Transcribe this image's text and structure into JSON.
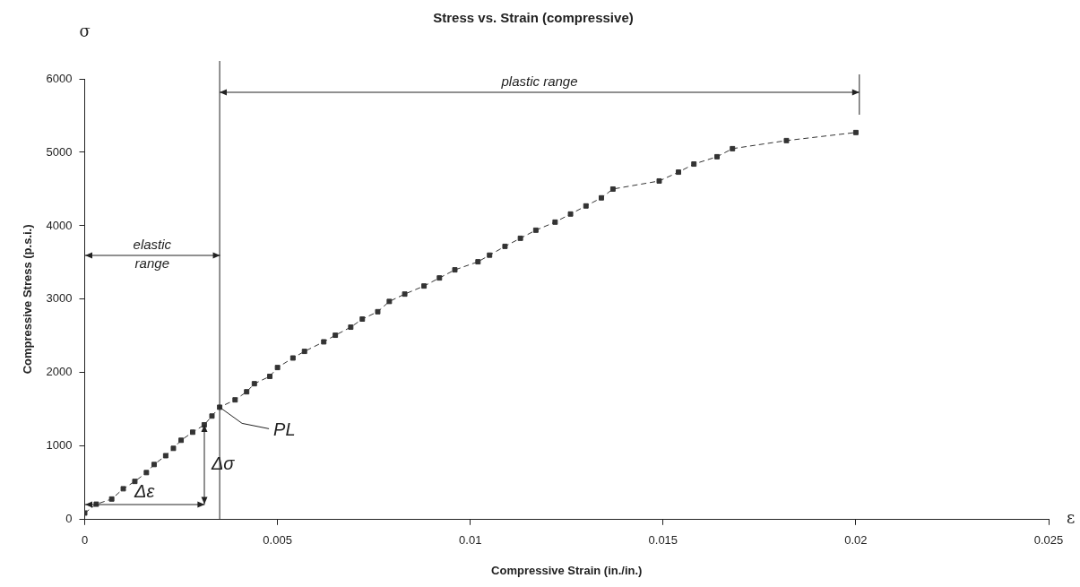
{
  "chart_data": {
    "type": "line",
    "title": "Stress vs. Strain (compressive)",
    "xlabel": "Compressive Strain (in./in.)",
    "ylabel": "Compressive Stress (p.s.i.)",
    "xlim": [
      0,
      0.025
    ],
    "xticks": [
      0,
      0.005,
      0.01,
      0.015,
      0.02,
      0.025
    ],
    "ylim": [
      0,
      6000
    ],
    "yticks": [
      0,
      1000,
      2000,
      3000,
      4000,
      5000,
      6000
    ],
    "grid": false,
    "legend": false,
    "marker": "square",
    "line_style": "dashed",
    "series": [
      {
        "color": "#333333",
        "x": [
          0,
          0.0003,
          0.0007,
          0.001,
          0.0013,
          0.0016,
          0.0018,
          0.0021,
          0.0023,
          0.0025,
          0.0028,
          0.0031,
          0.0033,
          0.0035,
          0.0039,
          0.0042,
          0.0044,
          0.0048,
          0.005,
          0.0054,
          0.0057,
          0.0062,
          0.0065,
          0.0069,
          0.0072,
          0.0076,
          0.0079,
          0.0083,
          0.0088,
          0.0092,
          0.0096,
          0.0102,
          0.0105,
          0.0109,
          0.0113,
          0.0117,
          0.0122,
          0.0126,
          0.013,
          0.0134,
          0.0137,
          0.0149,
          0.0154,
          0.0158,
          0.0164,
          0.0168,
          0.0182,
          0.02
        ],
        "values": [
          90,
          210,
          280,
          420,
          520,
          640,
          750,
          870,
          970,
          1080,
          1190,
          1290,
          1410,
          1530,
          1630,
          1740,
          1850,
          1950,
          2070,
          2200,
          2290,
          2420,
          2510,
          2620,
          2730,
          2830,
          2970,
          3070,
          3180,
          3290,
          3400,
          3510,
          3600,
          3720,
          3830,
          3940,
          4050,
          4160,
          4270,
          4380,
          4500,
          4610,
          4730,
          4840,
          4940,
          5050,
          5160,
          5270
        ]
      }
    ],
    "ref_lines": [
      {
        "axis": "x",
        "value": 0.0035,
        "color": "#222222",
        "line_style": "solid"
      }
    ],
    "annotations": [
      "elastic range",
      "plastic range",
      {
        "text": "PL",
        "x": 0.0035,
        "y": 1530
      },
      "Δσ",
      "Δε",
      "σ",
      "ε"
    ]
  }
}
